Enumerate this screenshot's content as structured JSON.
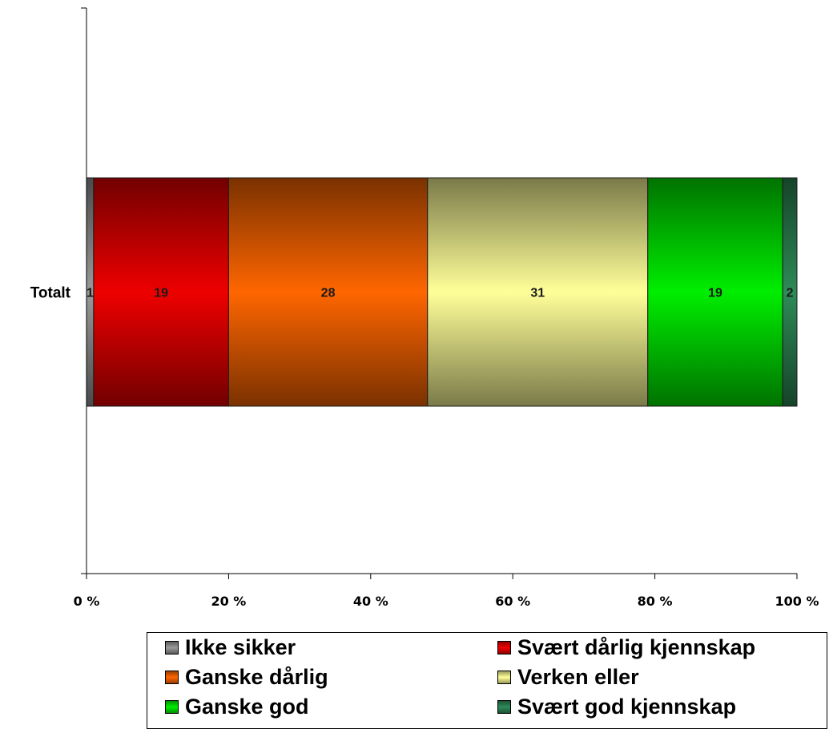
{
  "chart_data": {
    "type": "bar",
    "orientation": "horizontal",
    "stacked": true,
    "percent_stacked": true,
    "categories": [
      "Totalt"
    ],
    "series": [
      {
        "name": "Ikke sikker",
        "values": [
          1
        ],
        "color": "#9a9a9a",
        "label": "1"
      },
      {
        "name": "Svært dårlig kjennskap",
        "values": [
          19
        ],
        "color": "#ee0000",
        "label": "19"
      },
      {
        "name": "Ganske dårlig",
        "values": [
          28
        ],
        "color": "#ff6600",
        "label": "28"
      },
      {
        "name": "Verken eller",
        "values": [
          31
        ],
        "color": "#ffff99",
        "label": "31"
      },
      {
        "name": "Ganske god",
        "values": [
          19
        ],
        "color": "#00ee00",
        "label": "19"
      },
      {
        "name": "Svært god kjennskap",
        "values": [
          2
        ],
        "color": "#2e8b57",
        "label": "2"
      }
    ],
    "x_ticks": [
      "0 %",
      "20 %",
      "40 %",
      "60 %",
      "80 %",
      "100 %"
    ],
    "xlim": [
      0,
      100
    ],
    "title": "",
    "xlabel": "",
    "ylabel": "",
    "grid": false,
    "legend_position": "bottom"
  }
}
